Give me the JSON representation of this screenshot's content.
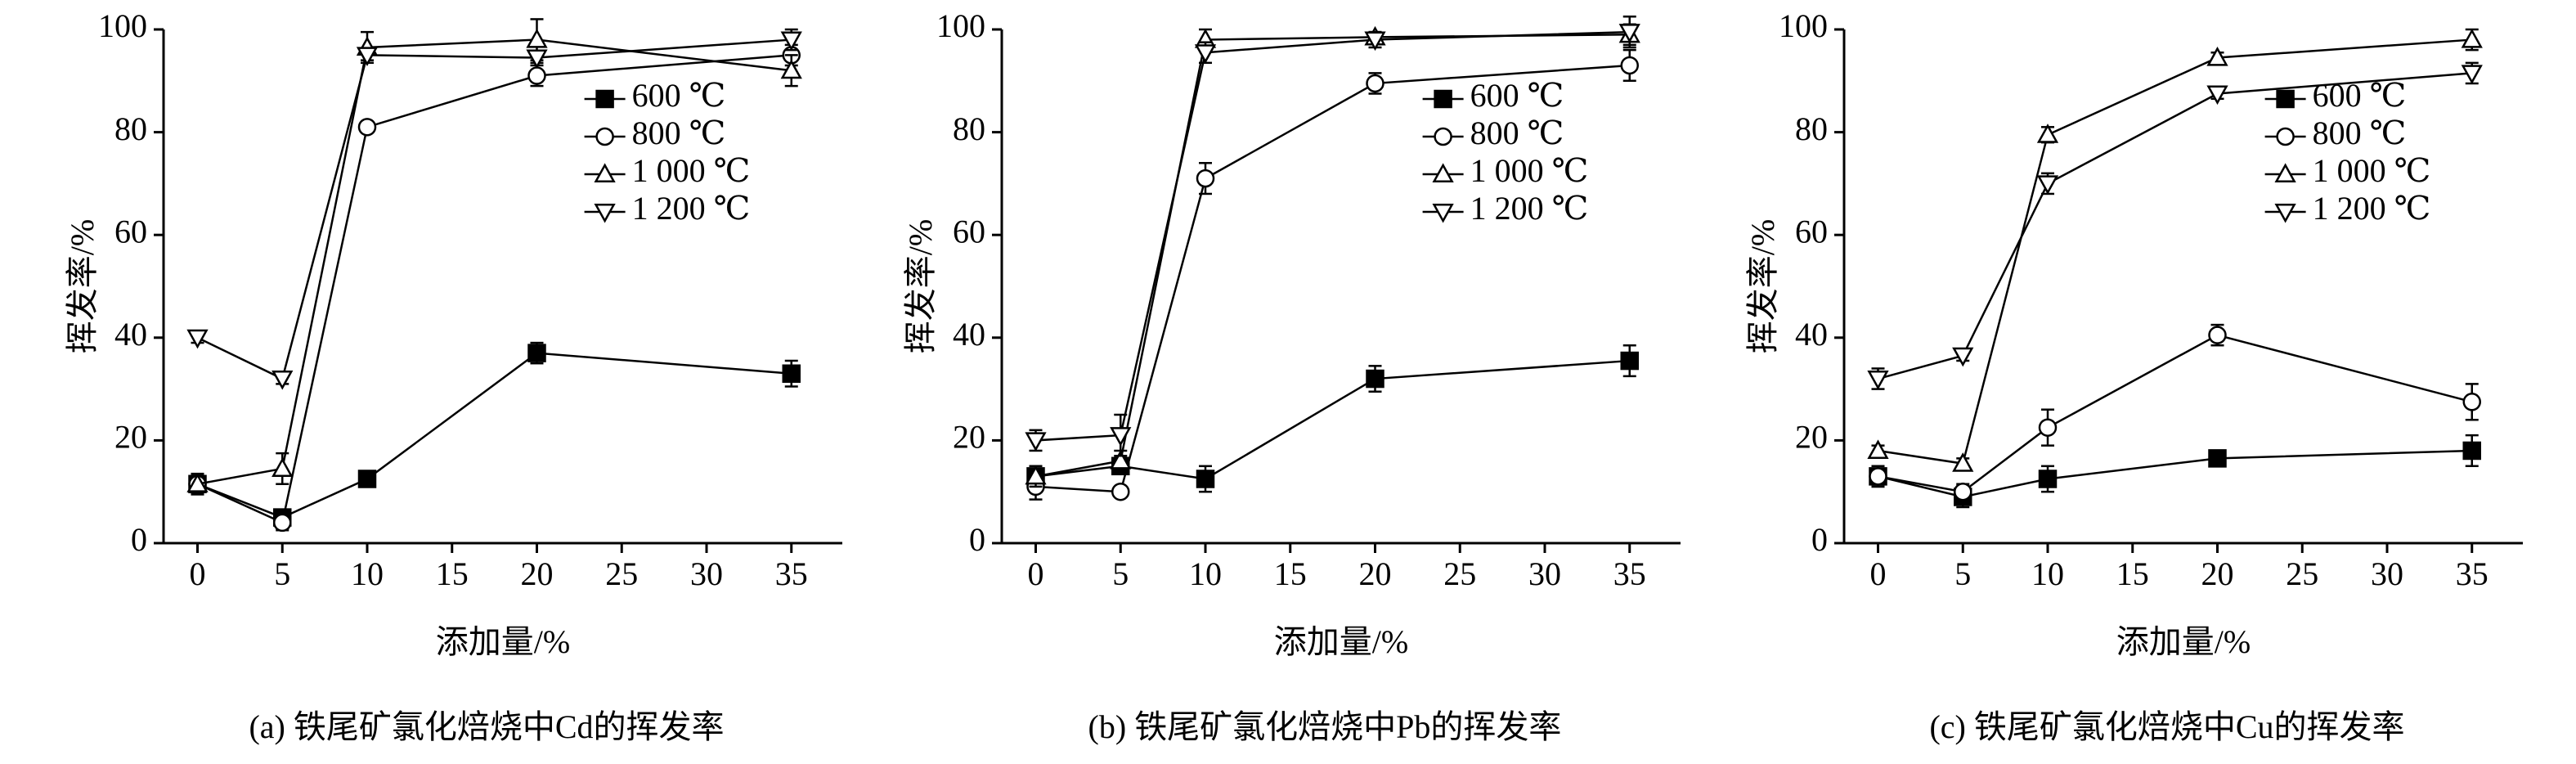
{
  "chart_data": [
    {
      "type": "line",
      "caption": "(a) 铁尾矿氯化焙烧中Cd的挥发率",
      "xlabel": "添加量/%",
      "ylabel": "挥发率/%",
      "x": [
        0,
        5,
        10,
        20,
        35
      ],
      "xlim": [
        -2,
        38
      ],
      "ylim": [
        0,
        100
      ],
      "xticks": [
        0,
        5,
        10,
        15,
        20,
        25,
        30,
        35
      ],
      "yticks": [
        0,
        20,
        40,
        60,
        80,
        100
      ],
      "legend": "upper right",
      "series": [
        {
          "name": "600 ℃",
          "color": "#000000",
          "marker": "square",
          "values": [
            11.5,
            5,
            12.5,
            37,
            33
          ],
          "errors": [
            2,
            1.5,
            1,
            2,
            2.5
          ]
        },
        {
          "name": "800 ℃",
          "color": "#000000",
          "marker": "circle",
          "values": [
            11.5,
            4,
            81,
            91,
            95
          ],
          "errors": [
            2,
            1.5,
            1,
            2,
            2
          ]
        },
        {
          "name": "1 000 ℃",
          "color": "#000000",
          "marker": "triangle-up",
          "values": [
            11.5,
            14.5,
            96.5,
            98,
            92
          ],
          "errors": [
            2,
            3,
            3,
            4,
            3
          ]
        },
        {
          "name": "1 200 ℃",
          "color": "#000000",
          "marker": "triangle-down",
          "values": [
            40,
            32,
            95,
            94.5,
            98
          ],
          "errors": [
            1,
            1,
            1,
            1,
            2
          ]
        }
      ]
    },
    {
      "type": "line",
      "caption": "(b) 铁尾矿氯化焙烧中Pb的挥发率",
      "xlabel": "添加量/%",
      "ylabel": "挥发率/%",
      "x": [
        0,
        5,
        10,
        20,
        35
      ],
      "xlim": [
        -2,
        38
      ],
      "ylim": [
        0,
        100
      ],
      "xticks": [
        0,
        5,
        10,
        15,
        20,
        25,
        30,
        35
      ],
      "yticks": [
        0,
        20,
        40,
        60,
        80,
        100
      ],
      "legend": "upper right",
      "series": [
        {
          "name": "600 ℃",
          "color": "#000000",
          "marker": "square",
          "values": [
            13,
            15,
            12.5,
            32,
            35.5
          ],
          "errors": [
            2,
            1,
            2.5,
            2.5,
            3
          ]
        },
        {
          "name": "800 ℃",
          "color": "#000000",
          "marker": "circle",
          "values": [
            11,
            10,
            71,
            89.5,
            93
          ],
          "errors": [
            2.5,
            1,
            3,
            2,
            3
          ]
        },
        {
          "name": "1 000 ℃",
          "color": "#000000",
          "marker": "triangle-up",
          "values": [
            13,
            16,
            98,
            98.5,
            99
          ],
          "errors": [
            2,
            2,
            2,
            1,
            2
          ]
        },
        {
          "name": "1 200 ℃",
          "color": "#000000",
          "marker": "triangle-down",
          "values": [
            20,
            21,
            95.5,
            98,
            99.5
          ],
          "errors": [
            2,
            4,
            2,
            1.5,
            3
          ]
        }
      ]
    },
    {
      "type": "line",
      "caption": "(c) 铁尾矿氯化焙烧中Cu的挥发率",
      "xlabel": "添加量/%",
      "ylabel": "挥发率/%",
      "x": [
        0,
        5,
        10,
        20,
        35
      ],
      "xlim": [
        -2,
        38
      ],
      "ylim": [
        0,
        100
      ],
      "xticks": [
        0,
        5,
        10,
        15,
        20,
        25,
        30,
        35
      ],
      "yticks": [
        0,
        20,
        40,
        60,
        80,
        100
      ],
      "legend": "upper right",
      "series": [
        {
          "name": "600 ℃",
          "color": "#000000",
          "marker": "square",
          "values": [
            13,
            9,
            12.5,
            16.5,
            18
          ],
          "errors": [
            2,
            2,
            2.5,
            1.5,
            3
          ]
        },
        {
          "name": "800 ℃",
          "color": "#000000",
          "marker": "circle",
          "values": [
            13,
            10,
            22.5,
            40.5,
            27.5
          ],
          "errors": [
            2,
            1.5,
            3.5,
            2,
            3.5
          ]
        },
        {
          "name": "1 000 ℃",
          "color": "#000000",
          "marker": "triangle-up",
          "values": [
            18,
            15.5,
            79.5,
            94.5,
            98
          ],
          "errors": [
            1,
            1,
            1.5,
            1,
            2
          ]
        },
        {
          "name": "1 200 ℃",
          "color": "#000000",
          "marker": "triangle-down",
          "values": [
            32,
            36.5,
            70,
            87.5,
            91.5
          ],
          "errors": [
            2,
            1,
            2,
            1,
            2
          ]
        }
      ]
    }
  ]
}
